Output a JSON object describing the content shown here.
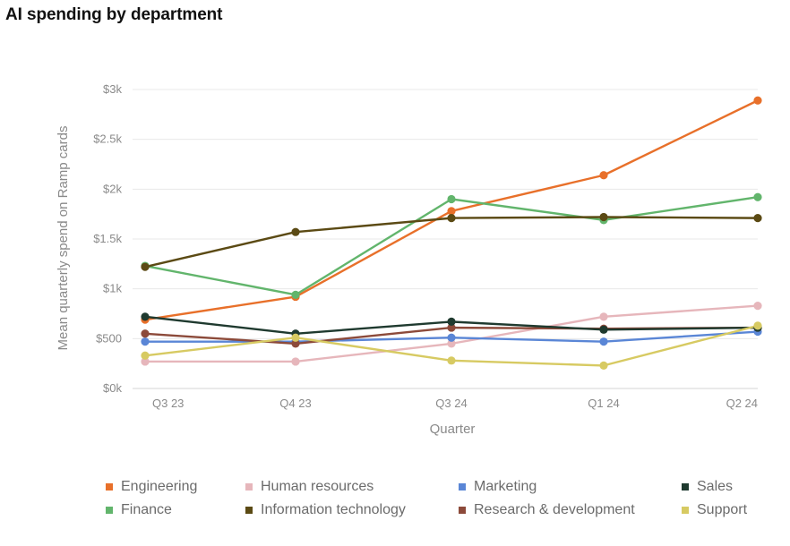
{
  "page": {
    "title": "AI spending by department"
  },
  "chart_data": {
    "type": "line",
    "title": "AI spending by department",
    "xlabel": "Quarter",
    "ylabel": "Mean quarterly spend on Ramp cards",
    "categories": [
      "Q3 23",
      "Q4 23",
      "Q3 24",
      "Q1 24",
      "Q2 24"
    ],
    "ylim": [
      0,
      3000
    ],
    "yticks": [
      {
        "value": 0,
        "label": "$0k"
      },
      {
        "value": 500,
        "label": "$500"
      },
      {
        "value": 1000,
        "label": "$1k"
      },
      {
        "value": 1500,
        "label": "$1.5k"
      },
      {
        "value": 2000,
        "label": "$2k"
      },
      {
        "value": 2500,
        "label": "$2.5k"
      },
      {
        "value": 3000,
        "label": "$3k"
      }
    ],
    "grid": true,
    "legend_position": "bottom",
    "series": [
      {
        "name": "Engineering",
        "color": "#e8702a",
        "values": [
          690,
          920,
          1780,
          2140,
          2890
        ]
      },
      {
        "name": "Finance",
        "color": "#62b56c",
        "values": [
          1230,
          940,
          1900,
          1690,
          1920
        ]
      },
      {
        "name": "Human resources",
        "color": "#e6b6bb",
        "values": [
          270,
          270,
          450,
          720,
          830
        ]
      },
      {
        "name": "Information technology",
        "color": "#5b4a14",
        "values": [
          1220,
          1570,
          1710,
          1720,
          1710
        ]
      },
      {
        "name": "Marketing",
        "color": "#5a86d6",
        "values": [
          470,
          470,
          510,
          470,
          570
        ]
      },
      {
        "name": "Research & development",
        "color": "#8c4a3a",
        "values": [
          550,
          450,
          610,
          600,
          610
        ]
      },
      {
        "name": "Sales",
        "color": "#1f3a2f",
        "values": [
          720,
          550,
          670,
          590,
          610
        ]
      },
      {
        "name": "Support",
        "color": "#d7ca62",
        "values": [
          330,
          510,
          280,
          230,
          630
        ]
      }
    ]
  }
}
